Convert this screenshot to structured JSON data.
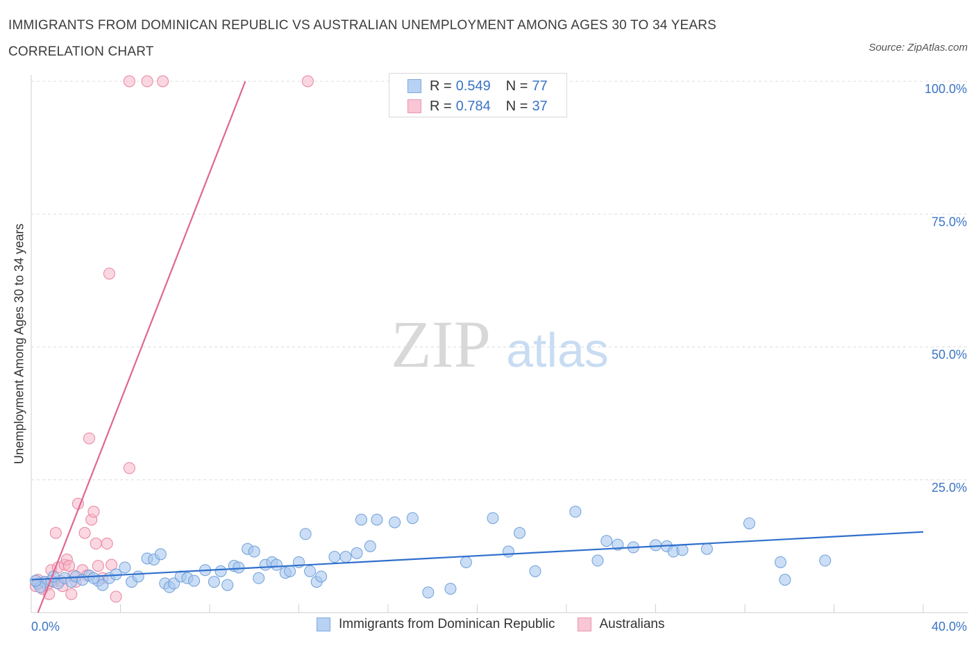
{
  "title": "IMMIGRANTS FROM DOMINICAN REPUBLIC VS AUSTRALIAN UNEMPLOYMENT AMONG AGES 30 TO 34 YEARS CORRELATION CHART",
  "source": "Source: ZipAtlas.com",
  "watermark": {
    "zip": "ZIP",
    "atlas": "atlas"
  },
  "legend": {
    "rows": [
      {
        "r_label": "R =",
        "r_value": "0.549",
        "n_label": "N =",
        "n_value": "77"
      },
      {
        "r_label": "R =",
        "r_value": "0.784",
        "n_label": "N =",
        "n_value": "37"
      }
    ]
  },
  "chart_data": {
    "type": "scatter",
    "title": "IMMIGRANTS FROM DOMINICAN REPUBLIC VS AUSTRALIAN UNEMPLOYMENT AMONG AGES 30 TO 34 YEARS CORRELATION CHART",
    "xlabel": "",
    "ylabel": "Unemployment Among Ages 30 to 34 years",
    "xlim": [
      0,
      40
    ],
    "ylim": [
      0,
      100
    ],
    "x_tick_labels": [
      "0.0%",
      "40.0%"
    ],
    "y_tick_labels": [
      "25.0%",
      "50.0%",
      "75.0%",
      "100.0%"
    ],
    "y_ticks": [
      25,
      50,
      75,
      100
    ],
    "grid": "horizontal dashed",
    "legend_position": "top-center",
    "colors": {
      "blue_fill": "#a8c8f0",
      "blue_stroke": "#6e9fd8",
      "blue_line": "#2f6fcc",
      "pink_fill": "#f6b6c8",
      "pink_stroke": "#e8829f",
      "pink_line": "#e0668f"
    },
    "series": [
      {
        "name": "Immigrants from Dominican Republic",
        "color": "blue",
        "trend": {
          "x": [
            0,
            40
          ],
          "y": [
            6.2,
            15.2
          ]
        },
        "points": [
          [
            0.3,
            5.5
          ],
          [
            0.6,
            5.8
          ],
          [
            0.9,
            6.0
          ],
          [
            1.2,
            5.5
          ],
          [
            1.5,
            6.5
          ],
          [
            1.8,
            5.8
          ],
          [
            2.0,
            6.8
          ],
          [
            2.3,
            6.2
          ],
          [
            2.6,
            7.0
          ],
          [
            3.0,
            6.0
          ],
          [
            3.2,
            5.2
          ],
          [
            3.5,
            6.5
          ],
          [
            3.8,
            7.2
          ],
          [
            4.2,
            8.5
          ],
          [
            4.5,
            5.8
          ],
          [
            4.8,
            6.8
          ],
          [
            5.2,
            10.2
          ],
          [
            5.5,
            10.0
          ],
          [
            5.8,
            11.0
          ],
          [
            6.0,
            5.5
          ],
          [
            6.2,
            4.8
          ],
          [
            6.4,
            5.5
          ],
          [
            6.7,
            6.8
          ],
          [
            7.0,
            6.5
          ],
          [
            7.3,
            6.0
          ],
          [
            7.8,
            8.0
          ],
          [
            8.2,
            5.8
          ],
          [
            8.5,
            7.8
          ],
          [
            8.8,
            5.2
          ],
          [
            9.1,
            8.8
          ],
          [
            9.3,
            8.5
          ],
          [
            9.7,
            12.0
          ],
          [
            10.0,
            11.5
          ],
          [
            10.2,
            6.5
          ],
          [
            10.5,
            9.0
          ],
          [
            10.8,
            9.5
          ],
          [
            11.0,
            9.0
          ],
          [
            11.4,
            7.5
          ],
          [
            11.6,
            7.8
          ],
          [
            12.0,
            9.5
          ],
          [
            12.3,
            14.8
          ],
          [
            12.5,
            7.8
          ],
          [
            12.8,
            5.8
          ],
          [
            13.0,
            6.8
          ],
          [
            13.6,
            10.5
          ],
          [
            14.1,
            10.5
          ],
          [
            14.6,
            11.2
          ],
          [
            14.8,
            17.5
          ],
          [
            15.2,
            12.5
          ],
          [
            15.5,
            17.5
          ],
          [
            16.3,
            17.0
          ],
          [
            17.1,
            17.8
          ],
          [
            17.8,
            3.8
          ],
          [
            18.8,
            4.5
          ],
          [
            19.5,
            9.5
          ],
          [
            20.7,
            17.8
          ],
          [
            21.4,
            11.5
          ],
          [
            21.9,
            15.0
          ],
          [
            22.6,
            7.8
          ],
          [
            24.4,
            19.0
          ],
          [
            25.4,
            9.8
          ],
          [
            25.8,
            13.5
          ],
          [
            26.3,
            12.8
          ],
          [
            27.0,
            12.3
          ],
          [
            28.0,
            12.7
          ],
          [
            28.5,
            12.5
          ],
          [
            28.8,
            11.5
          ],
          [
            29.2,
            11.8
          ],
          [
            30.3,
            12.0
          ],
          [
            32.2,
            16.8
          ],
          [
            33.8,
            6.2
          ],
          [
            33.6,
            9.5
          ],
          [
            35.6,
            9.8
          ],
          [
            0.4,
            4.8
          ],
          [
            1.0,
            6.8
          ],
          [
            0.2,
            6.0
          ],
          [
            2.8,
            6.5
          ]
        ]
      },
      {
        "name": "Australians",
        "color": "pink",
        "trend": {
          "x": [
            0.3,
            9.6
          ],
          "y": [
            0,
            100
          ]
        },
        "points": [
          [
            0.2,
            5.0
          ],
          [
            0.5,
            4.5
          ],
          [
            0.7,
            5.2
          ],
          [
            0.8,
            3.5
          ],
          [
            0.9,
            8.0
          ],
          [
            1.0,
            5.8
          ],
          [
            1.1,
            15.0
          ],
          [
            1.2,
            8.5
          ],
          [
            1.3,
            6.0
          ],
          [
            1.4,
            5.0
          ],
          [
            1.5,
            9.0
          ],
          [
            1.6,
            10.0
          ],
          [
            1.7,
            8.8
          ],
          [
            1.8,
            3.5
          ],
          [
            1.9,
            7.0
          ],
          [
            2.0,
            5.8
          ],
          [
            2.1,
            20.5
          ],
          [
            2.3,
            8.0
          ],
          [
            2.4,
            15.0
          ],
          [
            2.5,
            7.0
          ],
          [
            2.6,
            32.8
          ],
          [
            2.7,
            17.5
          ],
          [
            2.8,
            19.0
          ],
          [
            2.9,
            13.0
          ],
          [
            3.0,
            8.8
          ],
          [
            3.2,
            6.5
          ],
          [
            3.4,
            13.0
          ],
          [
            3.6,
            9.0
          ],
          [
            3.5,
            63.8
          ],
          [
            3.8,
            3.0
          ],
          [
            4.4,
            100
          ],
          [
            5.2,
            100
          ],
          [
            5.9,
            100
          ],
          [
            12.4,
            100
          ],
          [
            4.4,
            27.2
          ],
          [
            0.3,
            6.2
          ],
          [
            0.6,
            5.8
          ]
        ]
      }
    ]
  },
  "bottom_legend": [
    {
      "label": "Immigrants from Dominican Republic"
    },
    {
      "label": "Australians"
    }
  ]
}
